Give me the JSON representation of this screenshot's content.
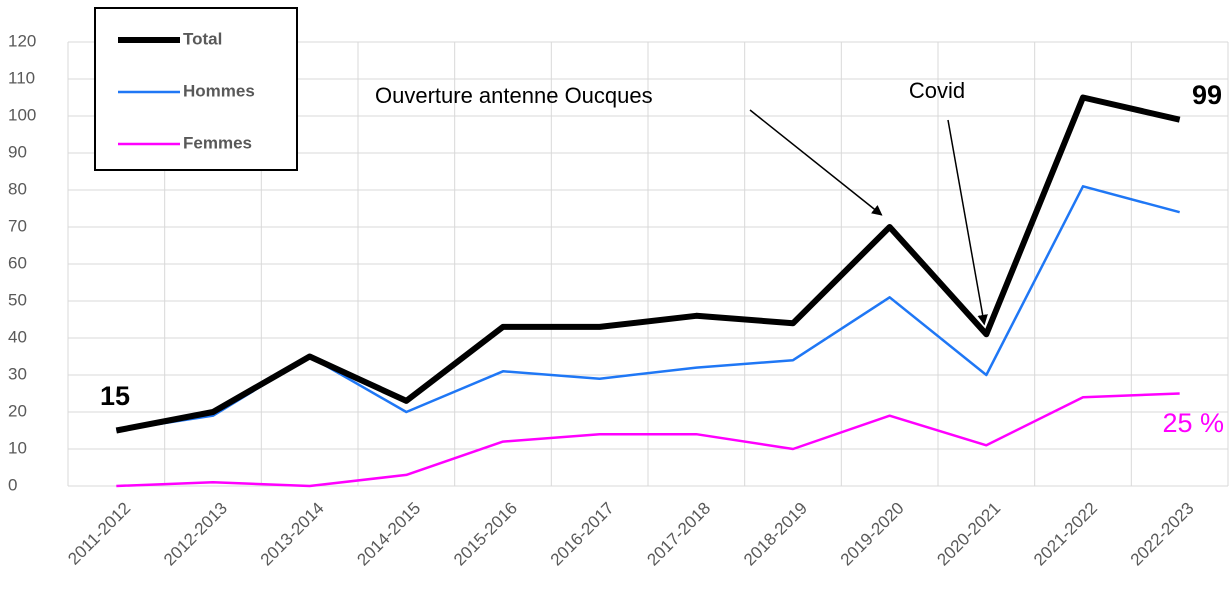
{
  "chart_data": {
    "type": "line",
    "categories": [
      "2011-2012",
      "2012-2013",
      "2013-2014",
      "2014-2015",
      "2015-2016",
      "2016-2017",
      "2017-2018",
      "2018-2019",
      "2019-2020",
      "2020-2021",
      "2021-2022",
      "2022-2023"
    ],
    "series": [
      {
        "name": "Total",
        "color": "#000000",
        "values": [
          15,
          20,
          35,
          23,
          43,
          43,
          46,
          44,
          70,
          41,
          105,
          99
        ]
      },
      {
        "name": "Hommes",
        "color": "#1f77f5",
        "values": [
          15,
          19,
          35,
          20,
          31,
          29,
          32,
          34,
          51,
          30,
          81,
          74
        ]
      },
      {
        "name": "Femmes",
        "color": "#ff00ff",
        "values": [
          0,
          1,
          0,
          3,
          12,
          14,
          14,
          10,
          19,
          11,
          24,
          25
        ],
        "value_labels": [
          null,
          null,
          null,
          null,
          null,
          null,
          null,
          null,
          null,
          null,
          null,
          "25 %"
        ]
      }
    ],
    "annotations": [
      "Ouverture antenne Oucques",
      "Covid"
    ],
    "ylim": [
      0,
      120
    ],
    "yticks": [
      0,
      10,
      20,
      30,
      40,
      50,
      60,
      70,
      80,
      90,
      100,
      110,
      120
    ],
    "grid": true
  }
}
